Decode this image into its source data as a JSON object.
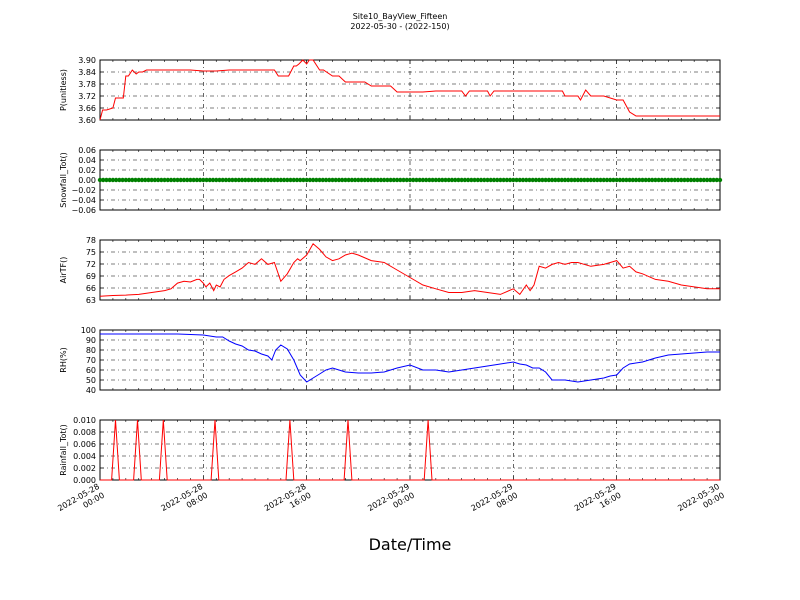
{
  "title_line1": "Site10_BayView_Fifteen",
  "title_line2": "2022-05-30 - (2022-150)",
  "x_label": "Date/Time",
  "x_ticks": [
    "2022-05-28\n00:00",
    "2022-05-28\n08:00",
    "2022-05-28\n16:00",
    "2022-05-29\n00:00",
    "2022-05-29\n08:00",
    "2022-05-29\n16:00",
    "2022-05-30\n00:00"
  ],
  "chart_data": [
    {
      "type": "line",
      "ylabel": "P(unitless)",
      "ylim": [
        3.6,
        3.9
      ],
      "yticks": [
        "3.60",
        "3.66",
        "3.72",
        "3.78",
        "3.84",
        "3.90"
      ],
      "grid": true,
      "color": "#ff0000",
      "series": [
        {
          "x": [
            0,
            0.2,
            0.5,
            1,
            1.2,
            1.6,
            1.8,
            2,
            2.2,
            2.5,
            2.8,
            3,
            3.3,
            3.6,
            4,
            5,
            6,
            7,
            8,
            9,
            10,
            11,
            12,
            12.3,
            12.8,
            13.5,
            13.8,
            14.2,
            14.6,
            15,
            15.2,
            15.4,
            15.7,
            16,
            16.2,
            16.5,
            17,
            17.3,
            18,
            18.5,
            19,
            20,
            20.5,
            21,
            21.5,
            22,
            22.5,
            23,
            24,
            25,
            26,
            27,
            28,
            28.3,
            28.6,
            29,
            29.5,
            30,
            30.2,
            30.5,
            31,
            32,
            33,
            34,
            35,
            35.3,
            35.8,
            36,
            36.5,
            37,
            37.2,
            37.6,
            38,
            38.5,
            39,
            40,
            40.5,
            41,
            41.5,
            42,
            43,
            44,
            45,
            46,
            47,
            48
          ],
          "values": [
            3.6,
            3.65,
            3.65,
            3.66,
            3.71,
            3.71,
            3.71,
            3.82,
            3.82,
            3.85,
            3.83,
            3.84,
            3.84,
            3.85,
            3.85,
            3.85,
            3.85,
            3.85,
            3.845,
            3.845,
            3.85,
            3.85,
            3.85,
            3.85,
            3.85,
            3.85,
            3.82,
            3.82,
            3.82,
            3.87,
            3.87,
            3.88,
            3.9,
            3.88,
            3.9,
            3.9,
            3.85,
            3.85,
            3.82,
            3.82,
            3.79,
            3.79,
            3.79,
            3.77,
            3.77,
            3.77,
            3.77,
            3.74,
            3.74,
            3.74,
            3.745,
            3.745,
            3.745,
            3.72,
            3.745,
            3.745,
            3.745,
            3.745,
            3.72,
            3.745,
            3.745,
            3.745,
            3.745,
            3.745,
            3.745,
            3.745,
            3.745,
            3.72,
            3.72,
            3.72,
            3.7,
            3.75,
            3.72,
            3.72,
            3.72,
            3.7,
            3.7,
            3.64,
            3.62,
            3.62,
            3.62,
            3.62,
            3.62,
            3.62,
            3.62,
            3.62
          ]
        }
      ]
    },
    {
      "type": "scatter",
      "ylabel": "Snowfall_Tot()",
      "ylim": [
        -0.06,
        0.06
      ],
      "yticks": [
        "−0.06",
        "−0.04",
        "−0.02",
        "0.00",
        "0.02",
        "0.04",
        "0.06"
      ],
      "grid": true,
      "color": "#008000",
      "series": [
        {
          "x_start": 0,
          "x_end": 48,
          "value": 0.0,
          "count": 193
        }
      ]
    },
    {
      "type": "line",
      "ylabel": "AirTF()",
      "ylim": [
        62,
        78
      ],
      "yticks": [
        "63",
        "66",
        "69",
        "72",
        "75",
        "78"
      ],
      "grid": true,
      "color": "#ff0000",
      "series": [
        {
          "x": [
            0,
            1,
            2,
            3,
            4,
            5,
            5.5,
            6,
            6.5,
            7,
            7.5,
            7.7,
            8,
            8.2,
            8.5,
            8.8,
            9,
            9.3,
            9.6,
            10,
            10.5,
            11,
            11.5,
            12,
            12.5,
            13,
            13.5,
            14,
            14.5,
            15,
            15.3,
            15.5,
            16,
            16.5,
            17,
            17.5,
            18,
            18.5,
            19,
            19.5,
            20,
            21,
            22,
            23,
            24,
            25,
            26,
            27,
            28,
            29,
            30,
            31,
            32,
            32.5,
            33,
            33.3,
            33.6,
            34,
            34.5,
            35,
            35.5,
            36,
            36.5,
            37,
            38,
            39,
            39.5,
            40,
            40.5,
            41,
            41.5,
            42,
            43,
            44,
            45,
            46,
            47,
            48
          ],
          "values": [
            63,
            63.2,
            63.3,
            63.5,
            64,
            64.5,
            65,
            66.5,
            67,
            66.8,
            67.5,
            67.5,
            66.5,
            65.5,
            66.5,
            64.5,
            66,
            65.5,
            67.5,
            68.5,
            69.5,
            70.5,
            72,
            71.5,
            73,
            71.5,
            72,
            67,
            69,
            72,
            73,
            72.5,
            74,
            77,
            75.5,
            73.5,
            72.5,
            73,
            74,
            74.5,
            74,
            72.5,
            72,
            70,
            68,
            66,
            65,
            64,
            64,
            64.5,
            64,
            63.5,
            65,
            63.5,
            66,
            64.5,
            66,
            71,
            70.5,
            71.5,
            72,
            71.5,
            72,
            72,
            71,
            71.5,
            72,
            72.5,
            70.5,
            71,
            69.5,
            69,
            67.5,
            67,
            66,
            65.5,
            65,
            65
          ]
        }
      ]
    },
    {
      "type": "line",
      "ylabel": "RH(%)",
      "ylim": [
        40,
        100
      ],
      "yticks": [
        "40",
        "50",
        "60",
        "70",
        "80",
        "90",
        "100"
      ],
      "grid": true,
      "color": "#0000ff",
      "series": [
        {
          "x": [
            0,
            2,
            4,
            6,
            8,
            8.5,
            9,
            9.5,
            10,
            10.5,
            11,
            11.5,
            12,
            12.5,
            13,
            13.3,
            13.6,
            14,
            14.5,
            15,
            15.5,
            16,
            16.5,
            17,
            17.5,
            18,
            18.5,
            19,
            20,
            21,
            22,
            23,
            24,
            25,
            26,
            27,
            28,
            29,
            30,
            31,
            32,
            32.5,
            33,
            33.5,
            34,
            34.5,
            35,
            36,
            37,
            38,
            39,
            39.5,
            40,
            40.5,
            41,
            42,
            43,
            44,
            45,
            46,
            47,
            48
          ],
          "values": [
            96,
            96,
            96,
            96,
            95,
            94,
            93,
            93,
            89,
            86,
            84,
            80,
            79,
            76,
            74,
            70,
            80,
            85,
            81,
            70,
            55,
            48,
            52,
            56,
            60,
            62,
            60,
            58,
            57,
            57,
            58,
            62,
            65,
            60,
            60,
            58,
            60,
            62,
            64,
            66,
            68,
            66,
            65,
            62,
            62,
            58,
            50,
            50,
            48,
            50,
            52,
            54,
            55,
            62,
            66,
            68,
            72,
            75,
            76,
            77,
            78,
            78
          ]
        }
      ]
    },
    {
      "type": "line",
      "ylabel": "Rainfall_Tot()",
      "ylim": [
        0.0,
        0.01
      ],
      "yticks": [
        "0.000",
        "0.002",
        "0.004",
        "0.006",
        "0.008",
        "0.010"
      ],
      "grid": true,
      "color": "#ff0000",
      "series": [
        {
          "x": [
            0,
            0.9,
            1.2,
            1.5,
            2.6,
            2.9,
            3.2,
            4.6,
            4.9,
            5.2,
            8.6,
            8.9,
            9.2,
            14.4,
            14.7,
            15,
            18.9,
            19.2,
            19.5,
            25.1,
            25.4,
            25.7,
            48
          ],
          "values": [
            0,
            0,
            0.01,
            0,
            0,
            0.01,
            0,
            0,
            0.01,
            0,
            0,
            0.01,
            0,
            0,
            0.01,
            0,
            0,
            0.01,
            0,
            0,
            0.01,
            0,
            0
          ]
        }
      ]
    }
  ]
}
